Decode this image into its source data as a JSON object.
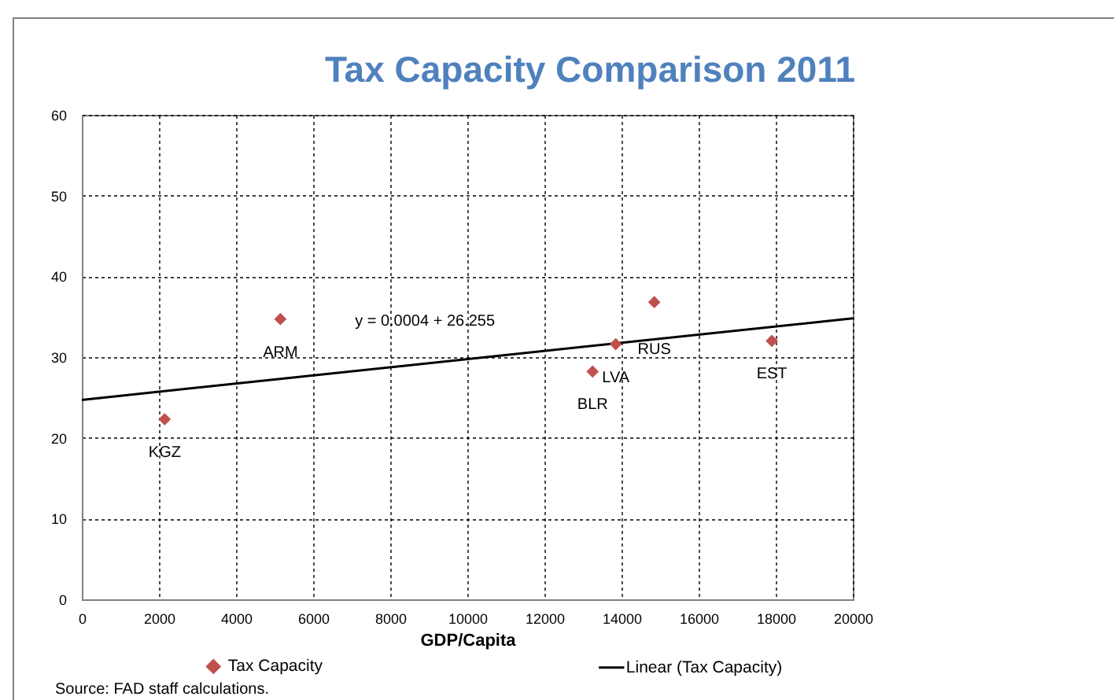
{
  "chart_data": {
    "type": "scatter",
    "title": "Tax Capacity Comparison 2011",
    "xlabel": "GDP/Capita",
    "xlim": [
      0,
      20000
    ],
    "xticks": [
      0,
      2000,
      4000,
      6000,
      8000,
      10000,
      12000,
      14000,
      16000,
      18000,
      20000
    ],
    "ylim": [
      0,
      60
    ],
    "yticks": [
      0,
      10,
      20,
      30,
      40,
      50,
      60
    ],
    "grid": true,
    "legend": "bottom",
    "series": [
      {
        "name": "Tax Capacity",
        "marker": "diamond",
        "color": "#c0504d",
        "x": [
          2150,
          5150,
          13250,
          13850,
          14850,
          17900
        ],
        "values": [
          22.3,
          34.7,
          28.2,
          31.6,
          36.8,
          32
        ]
      },
      {
        "name": "Linear (Tax Capacity)",
        "type": "line",
        "line_style": "solid",
        "color": "#000000",
        "x": [
          0,
          20000
        ],
        "values": [
          24.7,
          34.8
        ]
      }
    ],
    "annotations": [
      {
        "text": "KGZ",
        "x": 2150,
        "y": 22.3
      },
      {
        "text": "ARM",
        "x": 5150,
        "y": 34.7
      },
      {
        "text": "BLR",
        "x": 13250,
        "y": 28.2
      },
      {
        "text": "LVA",
        "x": 13850,
        "y": 31.6
      },
      {
        "text": "RUS",
        "x": 14850,
        "y": 36.8
      },
      {
        "text": "EST",
        "x": 17900,
        "y": 32
      },
      {
        "text": "y = 0.0004 + 26.255",
        "x": 8900,
        "y": 29.2
      },
      "Source: FAD staff calculations."
    ]
  }
}
